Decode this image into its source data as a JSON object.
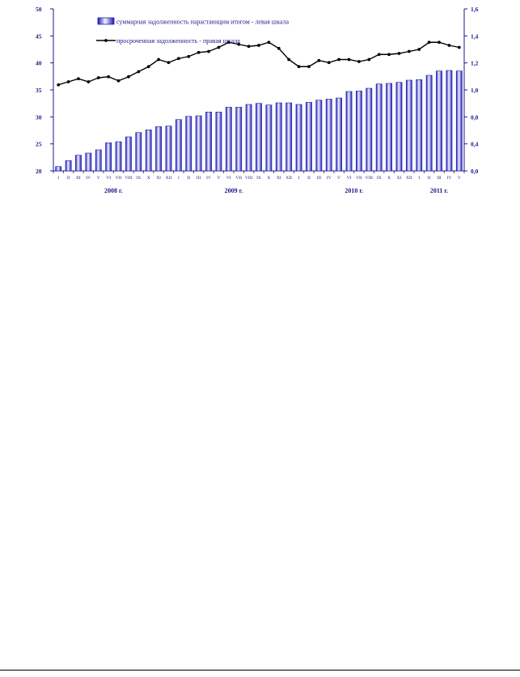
{
  "chart_data": {
    "type": "bar+line",
    "categories": [
      "I",
      "II",
      "III",
      "IV",
      "V",
      "VI",
      "VII",
      "VIII",
      "IX",
      "X",
      "XI",
      "XII",
      "I",
      "II",
      "III",
      "IV",
      "V",
      "VI",
      "VII",
      "VIII",
      "IX",
      "X",
      "XI",
      "XII",
      "I",
      "II",
      "III",
      "IV",
      "V",
      "VI",
      "VII",
      "VIII",
      "IX",
      "X",
      "XI",
      "XII",
      "I",
      "II",
      "III",
      "IV",
      "V"
    ],
    "years": [
      {
        "label": "2008 г.",
        "start": 0,
        "count": 12
      },
      {
        "label": "2009 г.",
        "start": 12,
        "count": 12
      },
      {
        "label": "2010 г.",
        "start": 24,
        "count": 12
      },
      {
        "label": "2011 г.",
        "start": 36,
        "count": 5
      }
    ],
    "series": [
      {
        "name": "суммарная задолженность нарастающим итогом - левая шкала",
        "type": "bar",
        "axis": "left",
        "values": [
          20.8,
          21.9,
          22.9,
          23.3,
          23.9,
          25.2,
          25.4,
          26.3,
          27.1,
          27.6,
          28.2,
          28.3,
          29.5,
          30.1,
          30.2,
          30.9,
          30.9,
          31.8,
          31.8,
          32.3,
          32.5,
          32.2,
          32.6,
          32.6,
          32.3,
          32.7,
          33.1,
          33.3,
          33.5,
          34.7,
          34.8,
          35.3,
          36.1,
          36.2,
          36.4,
          36.8,
          36.9,
          37.7,
          38.5,
          38.6,
          38.5
        ]
      },
      {
        "name": "просроченная задолженность - правая шкала",
        "type": "line",
        "axis": "right",
        "values": [
          0.85,
          0.88,
          0.91,
          0.88,
          0.92,
          0.93,
          0.89,
          0.93,
          0.98,
          1.03,
          1.1,
          1.07,
          1.11,
          1.13,
          1.17,
          1.18,
          1.22,
          1.27,
          1.25,
          1.23,
          1.24,
          1.27,
          1.21,
          1.1,
          1.03,
          1.03,
          1.09,
          1.07,
          1.1,
          1.1,
          1.08,
          1.1,
          1.15,
          1.15,
          1.16,
          1.18,
          1.2,
          1.27,
          1.27,
          1.24,
          1.22
        ]
      }
    ],
    "y_left": {
      "min": 20,
      "max": 50,
      "ticks": [
        "20",
        "25",
        "30",
        "35",
        "40",
        "45",
        "50"
      ]
    },
    "y_right": {
      "min": 0,
      "max": 1.6,
      "ticks": [
        "0,0",
        "0,4",
        "0,8",
        "1,0",
        "1,2",
        "1,4",
        "1,6"
      ]
    },
    "legend_position": "top-left inside",
    "colors": {
      "bar_fill_edge": "#1b1bb0",
      "bar_fill_center": "#ffffff",
      "line": "#000000",
      "axis": "#1a1a8a"
    }
  }
}
